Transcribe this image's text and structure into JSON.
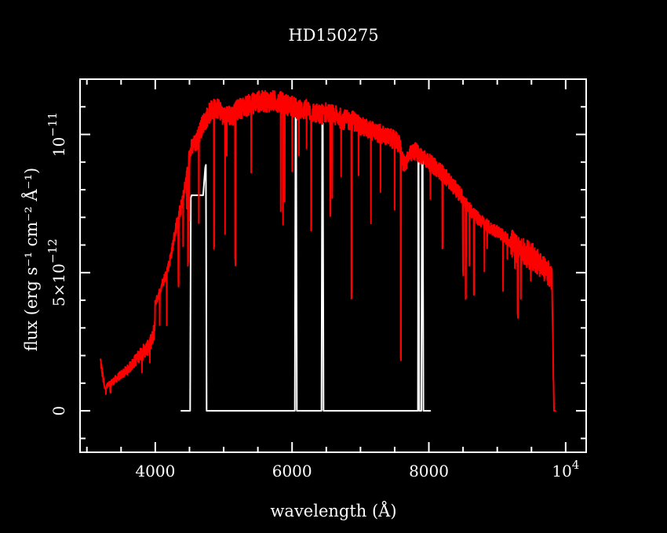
{
  "colors": {
    "background": "#000000",
    "foreground": "#ffffff",
    "flux_series": "#ff0000",
    "error_series": "#ffffff"
  },
  "chart_data": {
    "type": "line",
    "title": "HD150275",
    "xlabel": "wavelength (Å)",
    "ylabel": "flux (erg s⁻¹ cm⁻² Å⁻¹)",
    "xlim": [
      2900,
      10300
    ],
    "ylim": [
      -1.5e-12,
      1.2e-11
    ],
    "grid": false,
    "legend": "none",
    "x_ticks": [
      {
        "value": 4000,
        "label": "4000"
      },
      {
        "value": 6000,
        "label": "6000"
      },
      {
        "value": 8000,
        "label": "8000"
      },
      {
        "value": 10000,
        "label": "10",
        "exponent": "4"
      }
    ],
    "y_ticks": [
      {
        "value": 0,
        "label": "0"
      },
      {
        "value": 5e-12,
        "label": "5×10",
        "exponent": "−12"
      },
      {
        "value": 1e-11,
        "label": "10",
        "exponent": "−11"
      }
    ],
    "series": [
      {
        "color": "#ff0000",
        "style": "noisy spectrum",
        "x": [
          3200,
          3230,
          3260,
          3300,
          3400,
          3500,
          3600,
          3700,
          3800,
          3900,
          3960,
          3990,
          4000,
          4050,
          4100,
          4150,
          4200,
          4250,
          4300,
          4350,
          4400,
          4450,
          4500,
          4530,
          4560,
          4600,
          4650,
          4700,
          4750,
          4800,
          4850,
          4900,
          4950,
          5000,
          5050,
          5100,
          5150,
          5200,
          5300,
          5400,
          5500,
          5600,
          5700,
          5800,
          5900,
          6000,
          6100,
          6200,
          6300,
          6400,
          6500,
          6600,
          6700,
          6800,
          6900,
          7000,
          7100,
          7200,
          7300,
          7400,
          7500,
          7580,
          7600,
          7630,
          7660,
          7700,
          7750,
          7800,
          7850,
          7900,
          8000,
          8100,
          8200,
          8300,
          8400,
          8500,
          8600,
          8700,
          8800,
          8900,
          9000,
          9100,
          9200,
          9300,
          9400,
          9500,
          9600,
          9700,
          9780,
          9800,
          9830,
          9850
        ],
        "y": [
          1.8e-12,
          1.3e-12,
          8e-13,
          9e-13,
          1.1e-12,
          1.3e-12,
          1.5e-12,
          1.8e-12,
          2.1e-12,
          2.3e-12,
          2.6e-12,
          3e-12,
          3.9e-12,
          4.2e-12,
          4.6e-12,
          4.9e-12,
          5.3e-12,
          5.9e-12,
          6.6e-12,
          7.1e-12,
          7.6e-12,
          8.3e-12,
          9.2e-12,
          9.5e-12,
          9.6e-12,
          9.7e-12,
          1.01e-11,
          1.04e-11,
          1.06e-11,
          1.08e-11,
          1.09e-11,
          1.1e-11,
          1.09e-11,
          1.06e-11,
          1.08e-11,
          1.07e-11,
          1.07e-11,
          1.09e-11,
          1.1e-11,
          1.11e-11,
          1.12e-11,
          1.12e-11,
          1.12e-11,
          1.12e-11,
          1.11e-11,
          1.1e-11,
          1.09e-11,
          1.09e-11,
          1.08e-11,
          1.07e-11,
          1.08e-11,
          1.07e-11,
          1.06e-11,
          1.05e-11,
          1.05e-11,
          1.03e-11,
          1.02e-11,
          1.01e-11,
          1e-11,
          9.9e-12,
          9.8e-12,
          9.6e-12,
          9.3e-12,
          8.9e-12,
          9e-12,
          9.2e-12,
          9.3e-12,
          9.4e-12,
          9.3e-12,
          9.2e-12,
          9e-12,
          8.8e-12,
          8.6e-12,
          8.3e-12,
          8e-12,
          7.7e-12,
          7.3e-12,
          7e-12,
          6.8e-12,
          6.6e-12,
          6.5e-12,
          6.3e-12,
          6.1e-12,
          5.8e-12,
          5.7e-12,
          5.6e-12,
          5.4e-12,
          5.1e-12,
          4.9e-12,
          4.7e-12,
          0,
          0
        ]
      },
      {
        "color": "#ffffff",
        "style": "sparse data-quality step",
        "x": [
          4380,
          4500,
          4510,
          4520,
          4530,
          4700,
          4730,
          4740,
          4750,
          4760,
          4860,
          5990,
          6040,
          6050,
          6060,
          6070,
          6380,
          6430,
          6440,
          6450,
          6460,
          6540,
          7700,
          7840,
          7845,
          7850,
          7860,
          7890,
          7900,
          7910,
          7920,
          8020
        ],
        "y": [
          0,
          0,
          0,
          7.7e-12,
          7.8e-12,
          7.8e-12,
          8.8e-12,
          8.9e-12,
          0,
          0,
          0,
          0,
          0,
          1.06e-11,
          1.06e-11,
          0,
          0,
          0,
          1.04e-11,
          1.04e-11,
          0,
          0,
          0,
          0,
          9.2e-12,
          9.2e-12,
          0,
          0,
          9.2e-12,
          9.2e-12,
          0,
          0
        ]
      }
    ]
  }
}
